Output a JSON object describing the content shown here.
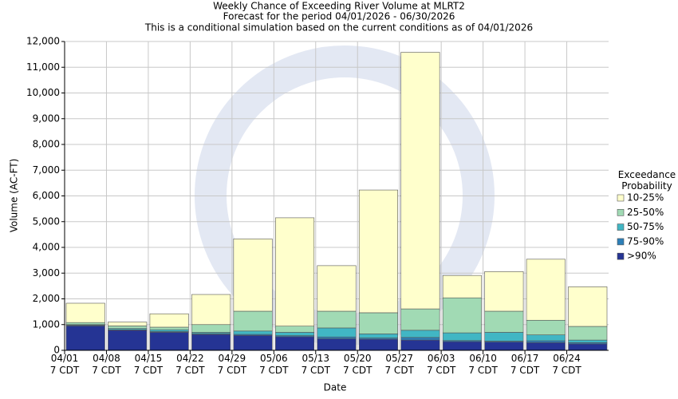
{
  "chart_data": {
    "type": "stacked_bar",
    "title": "Weekly Chance of Exceeding River Volume at MLRT2",
    "subtitle": "Forecast for the period 04/01/2026 - 06/30/2026",
    "subtitle2": "This is a conditional simulation based on the current conditions as of 04/01/2026",
    "x_label": "Date",
    "y_label": "Volume (AC-FT)",
    "legend_title": "Exceedance\nProbability",
    "categories": [
      "04/01\n7 CDT",
      "04/08\n7 CDT",
      "04/15\n7 CDT",
      "04/22\n7 CDT",
      "04/29\n7 CDT",
      "05/06\n7 CDT",
      "05/13\n7 CDT",
      "05/20\n7 CDT",
      "05/27\n7 CDT",
      "06/03\n7 CDT",
      "06/10\n7 CDT",
      "06/17\n7 CDT",
      "06/24\n7 CDT"
    ],
    "series": [
      {
        "name": ">90%",
        "color": "#253494",
        "values": [
          950,
          780,
          700,
          620,
          580,
          530,
          450,
          430,
          400,
          340,
          320,
          300,
          250
        ]
      },
      {
        "name": "75-90%",
        "color": "#2c7fb8",
        "values": [
          30,
          20,
          30,
          30,
          40,
          40,
          70,
          50,
          100,
          40,
          40,
          70,
          50
        ]
      },
      {
        "name": "50-75%",
        "color": "#41b6c4",
        "values": [
          20,
          50,
          70,
          50,
          130,
          130,
          350,
          160,
          280,
          300,
          340,
          230,
          100
        ]
      },
      {
        "name": "25-50%",
        "color": "#a1dab4",
        "values": [
          80,
          100,
          100,
          300,
          770,
          240,
          650,
          820,
          830,
          1360,
          820,
          570,
          530
        ]
      },
      {
        "name": "10-25%",
        "color": "#ffffcc",
        "values": [
          750,
          150,
          520,
          1170,
          2810,
          4210,
          1770,
          4770,
          9970,
          870,
          1540,
          2370,
          1540
        ]
      }
    ],
    "ylim": [
      0,
      12000
    ],
    "yticks": [
      0,
      {
        "value": 1000,
        "label": "1,000"
      },
      {
        "value": 2000,
        "label": "2,000"
      },
      {
        "value": 3000,
        "label": "3,000"
      },
      {
        "value": 4000,
        "label": "4,000"
      },
      {
        "value": 5000,
        "label": "5,000"
      },
      {
        "value": 6000,
        "label": "6,000"
      },
      {
        "value": 7000,
        "label": "7,000"
      },
      {
        "value": 8000,
        "label": "8,000"
      },
      {
        "value": 9000,
        "label": "9,000"
      },
      {
        "value": 10000,
        "label": "10,000"
      },
      {
        "value": 11000,
        "label": "11,000"
      },
      {
        "value": 12000,
        "label": "12,000"
      }
    ],
    "grid": true,
    "legend": "right"
  }
}
